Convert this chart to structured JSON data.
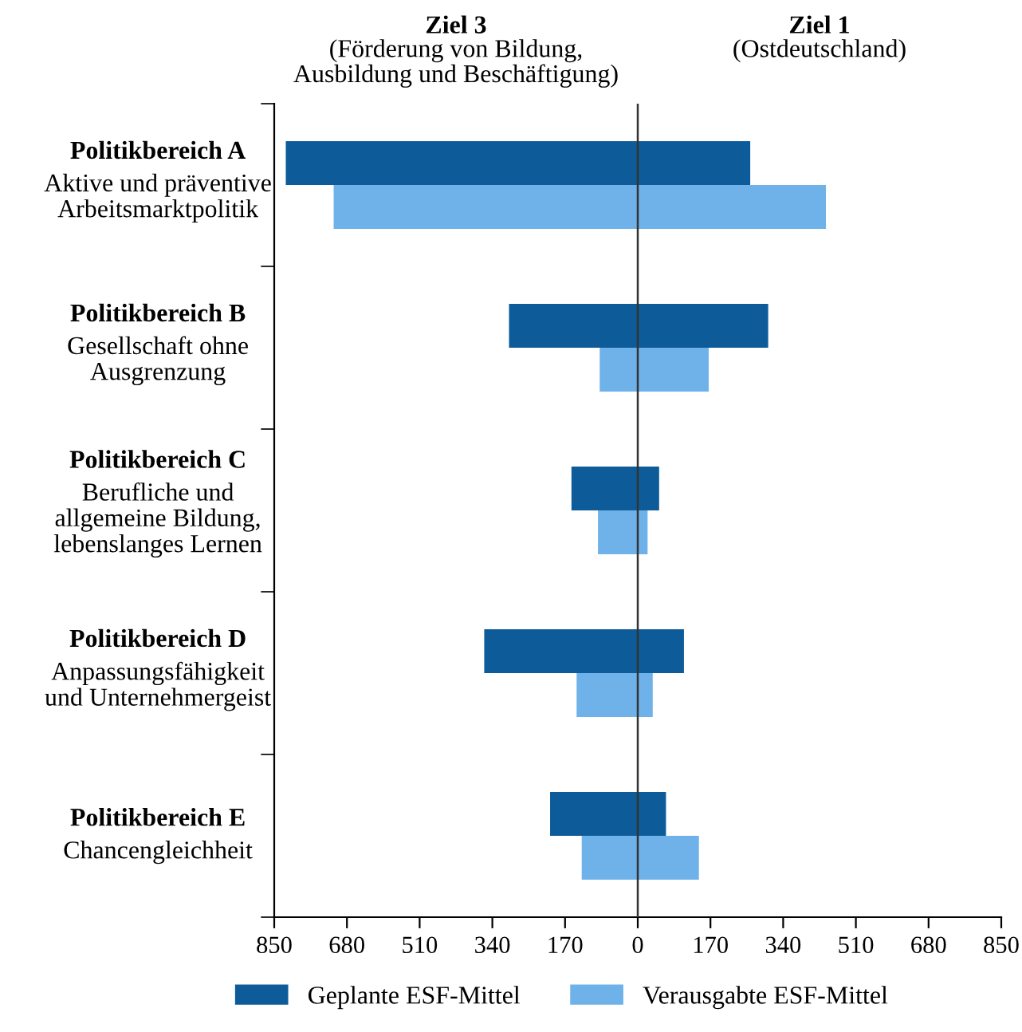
{
  "chart_data": {
    "type": "bar",
    "orientation": "horizontal",
    "categories": [
      "Politikbereich A\nAktive und präventive\nArbeitsmarktpolitik",
      "Politikbereich B\nGesellschaft ohne\nAusgrenzung",
      "Politikbereich C\nBerufliche und\nallgemeine Bildung,\nlebenslanges Lernen",
      "Politikbereich D\nAnpassungsfähigkeit\nund Unternehmergeist",
      "Politikbereich E\nChancengleichheit"
    ],
    "series": [
      {
        "name": "Geplante ESF-Mittel",
        "color": "#0d5c99",
        "base": [
          -823,
          -301,
          -155,
          -359,
          -205
        ],
        "values": [
          1086,
          606,
          205,
          467,
          271
        ]
      },
      {
        "name": "Verausgabte ESF-Mittel",
        "color": "#6fb2ea",
        "base": [
          -711,
          -89,
          -93,
          -143,
          -131
        ],
        "values": [
          1151,
          255,
          116,
          178,
          274
        ]
      }
    ],
    "xlim": [
      -850,
      850
    ],
    "xticks": [
      {
        "value": -850,
        "label": "850"
      },
      {
        "value": -680,
        "label": "680"
      },
      {
        "value": -510,
        "label": "510"
      },
      {
        "value": -340,
        "label": "340"
      },
      {
        "value": -170,
        "label": "170"
      },
      0,
      170,
      340,
      510,
      680,
      850
    ],
    "ref_lines": [
      {
        "axis": "x",
        "value": 0,
        "color": "#333333"
      }
    ],
    "annotations": [
      "Ziel 3\n(Förderung von Bildung,\nAusbildung und Beschäftigung)",
      "Ziel 1\n(Ostdeutschland)"
    ],
    "legend": "bottom",
    "grid": false
  }
}
